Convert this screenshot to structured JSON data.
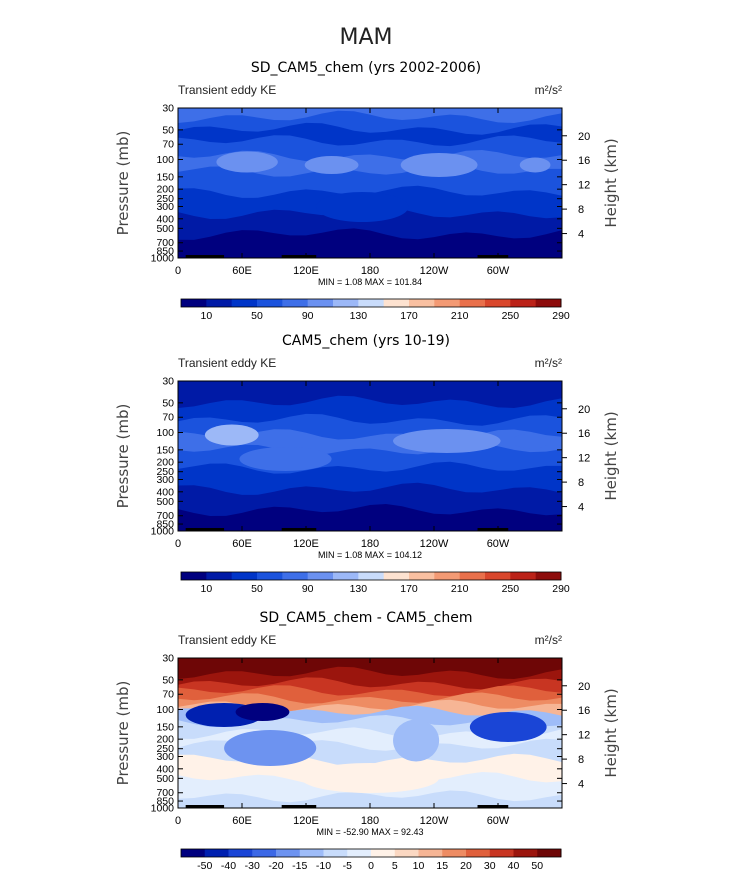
{
  "figure_title": "MAM",
  "colors": {
    "abs_scale": [
      "#00007f",
      "#001aa6",
      "#0035c8",
      "#1b53dd",
      "#3e6fe8",
      "#6b91f0",
      "#9cb8f7",
      "#c9dcfb",
      "#fde2d0",
      "#f9c0a1",
      "#f39a74",
      "#e9704b",
      "#d9472c",
      "#bb2218",
      "#8d0c0b"
    ],
    "diff_scale": [
      "#00007f",
      "#0020b0",
      "#1a45d6",
      "#3c68e6",
      "#6d93f0",
      "#9ebcf8",
      "#c8dcfb",
      "#e3eefd",
      "#fff2e8",
      "#fbd8c2",
      "#f6b595",
      "#ee8c63",
      "#e0603c",
      "#c83522",
      "#9b150d",
      "#6e0606"
    ]
  },
  "panels": [
    {
      "title": "SD_CAM5_chem (yrs 2002-2006)",
      "left_label": "Transient eddy KE",
      "units": "m²/s²",
      "stats": "MIN =    1.08   MAX =  101.84",
      "colorbar_labels": [
        "10",
        "50",
        "90",
        "130",
        "170",
        "210",
        "250",
        "290"
      ]
    },
    {
      "title": "CAM5_chem (yrs 10-19)",
      "left_label": "Transient eddy KE",
      "units": "m²/s²",
      "stats": "MIN =    1.08   MAX =  104.12",
      "colorbar_labels": [
        "10",
        "50",
        "90",
        "130",
        "170",
        "210",
        "250",
        "290"
      ]
    },
    {
      "title": "SD_CAM5_chem - CAM5_chem",
      "left_label": "Transient eddy KE",
      "units": "m²/s²",
      "stats": "MIN =  -52.90   MAX =   92.43",
      "colorbar_labels": [
        "-50",
        "-40",
        "-30",
        "-20",
        "-15",
        "-10",
        "-5",
        "0",
        "5",
        "10",
        "15",
        "20",
        "30",
        "40",
        "50"
      ]
    }
  ],
  "chart_data": [
    {
      "type": "heatmap",
      "title": "SD_CAM5_chem (yrs 2002-2006)",
      "ylabel": "Pressure (mb)",
      "right_ylabel": "Height (km)",
      "x_ticks": [
        "0",
        "60E",
        "120E",
        "180",
        "120W",
        "60W"
      ],
      "y_ticks": [
        "30",
        "50",
        "70",
        "100",
        "150",
        "200",
        "250",
        "300",
        "400",
        "500",
        "700",
        "850",
        "1000"
      ],
      "right_y_ticks": [
        "20",
        "16",
        "12",
        "8",
        "4"
      ],
      "ylim": [
        1000,
        30
      ],
      "colorbar_levels": [
        10,
        30,
        50,
        70,
        90,
        110,
        130,
        150,
        170,
        190,
        210,
        230,
        250,
        270,
        290
      ],
      "min": 1.08,
      "max": 101.84
    },
    {
      "type": "heatmap",
      "title": "CAM5_chem (yrs 10-19)",
      "ylabel": "Pressure (mb)",
      "right_ylabel": "Height (km)",
      "x_ticks": [
        "0",
        "60E",
        "120E",
        "180",
        "120W",
        "60W"
      ],
      "y_ticks": [
        "30",
        "50",
        "70",
        "100",
        "150",
        "200",
        "250",
        "300",
        "400",
        "500",
        "700",
        "850",
        "1000"
      ],
      "right_y_ticks": [
        "20",
        "16",
        "12",
        "8",
        "4"
      ],
      "ylim": [
        1000,
        30
      ],
      "colorbar_levels": [
        10,
        30,
        50,
        70,
        90,
        110,
        130,
        150,
        170,
        190,
        210,
        230,
        250,
        270,
        290
      ],
      "min": 1.08,
      "max": 104.12
    },
    {
      "type": "heatmap",
      "title": "SD_CAM5_chem - CAM5_chem",
      "ylabel": "Pressure (mb)",
      "right_ylabel": "Height (km)",
      "x_ticks": [
        "0",
        "60E",
        "120E",
        "180",
        "120W",
        "60W"
      ],
      "y_ticks": [
        "30",
        "50",
        "70",
        "100",
        "150",
        "200",
        "250",
        "300",
        "400",
        "500",
        "700",
        "850",
        "1000"
      ],
      "right_y_ticks": [
        "20",
        "16",
        "12",
        "8",
        "4"
      ],
      "ylim": [
        1000,
        30
      ],
      "colorbar_levels": [
        -50,
        -40,
        -30,
        -20,
        -15,
        -10,
        -5,
        0,
        5,
        10,
        15,
        20,
        30,
        40,
        50
      ],
      "min": -52.9,
      "max": 92.43
    }
  ]
}
